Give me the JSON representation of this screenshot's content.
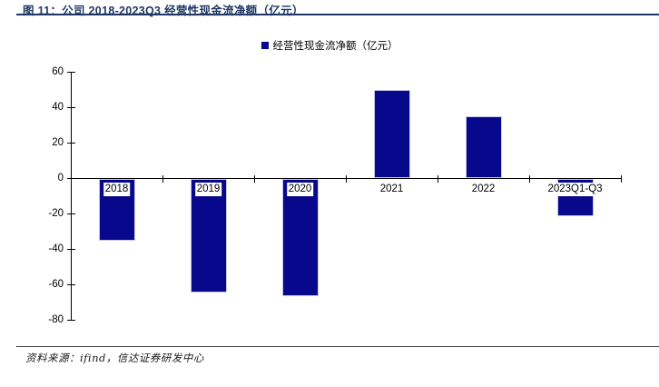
{
  "figure": {
    "title": "图 11：公司 2018-2023Q3 经营性现金流净额（亿元）",
    "source": "资料来源：ifind，信达证券研发中心"
  },
  "legend": {
    "label": "经营性现金流净额（亿元）"
  },
  "colors": {
    "bar": "#08088d",
    "bar_border": "#c8c8e8",
    "title": "#1f3864",
    "title_rule": "#1f3864",
    "footer_rule": "#404040",
    "axis": "#000000"
  },
  "chart_data": {
    "type": "bar",
    "title": "图 11：公司 2018-2023Q3 经营性现金流净额（亿元）",
    "legend_entries": [
      "经营性现金流净额（亿元）"
    ],
    "legend_position": "top-center",
    "categories": [
      "2018",
      "2019",
      "2020",
      "2021",
      "2022",
      "2023Q1-Q3"
    ],
    "values": [
      -35,
      -64,
      -66,
      50,
      35,
      -21
    ],
    "xlabel": "",
    "ylabel": "",
    "ylim": [
      -80,
      60
    ],
    "yticks": [
      60,
      40,
      20,
      0,
      -20,
      -40,
      -60,
      -80
    ],
    "grid": false
  }
}
